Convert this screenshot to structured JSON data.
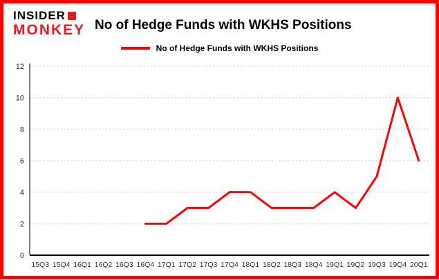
{
  "branding": {
    "logo_line1": "INSIDER",
    "logo_line2": "MONKEY",
    "logo_color": "#e31b23"
  },
  "header": {
    "title": "No of Hedge Funds with WKHS Positions"
  },
  "legend": {
    "label": "No of Hedge Funds with WKHS Positions",
    "line_color": "#fe0000"
  },
  "chart_data": {
    "type": "line",
    "title": "No of Hedge Funds with WKHS Positions",
    "categories": [
      "15Q3",
      "15Q4",
      "16Q1",
      "16Q2",
      "16Q3",
      "16Q4",
      "17Q1",
      "17Q2",
      "17Q3",
      "17Q4",
      "18Q1",
      "18Q2",
      "18Q3",
      "18Q4",
      "19Q1",
      "19Q2",
      "19Q3",
      "19Q4",
      "20Q1"
    ],
    "series": [
      {
        "name": "No of Hedge Funds with WKHS Positions",
        "values": [
          null,
          null,
          null,
          null,
          null,
          2,
          2,
          3,
          3,
          4,
          4,
          3,
          3,
          3,
          4,
          3,
          5,
          10,
          6
        ]
      }
    ],
    "xlabel": "",
    "ylabel": "",
    "ylim": [
      0,
      12
    ],
    "yticks": [
      0,
      2,
      4,
      6,
      8,
      10,
      12
    ],
    "grid": true,
    "legend_position": "top-center",
    "line_color": "#fe0000",
    "border_color": "#fe0000"
  }
}
